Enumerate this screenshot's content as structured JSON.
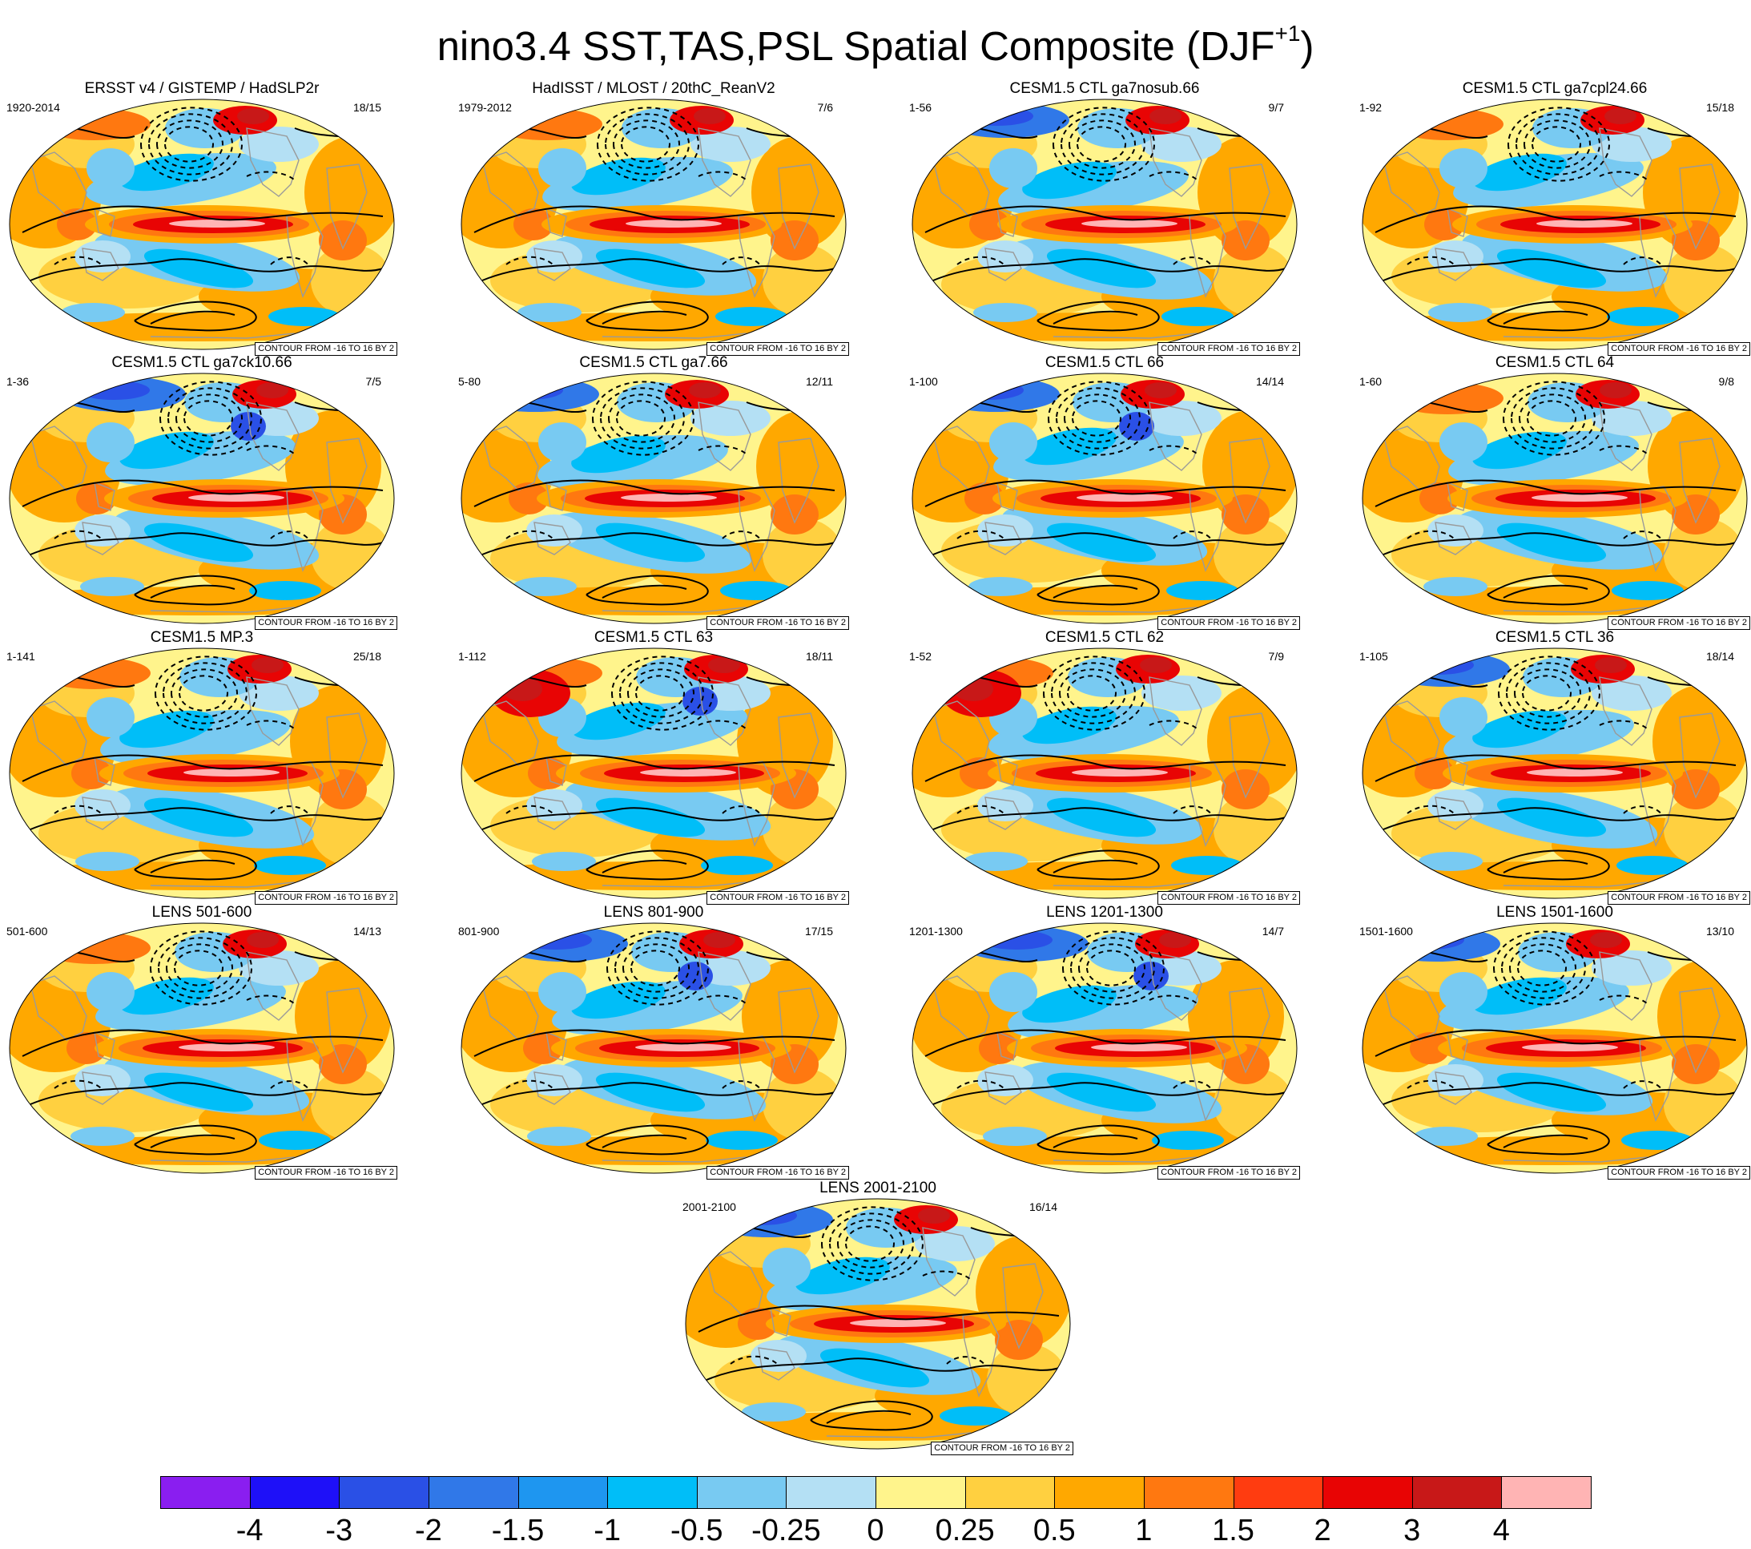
{
  "title": {
    "main": "nino3.4 SST,TAS,PSL Spatial Composite (DJF",
    "superscript": "+1",
    "close": ")"
  },
  "contour_note": "CONTOUR FROM -16 TO 16 BY 2",
  "panels": [
    {
      "title": "ERSST v4 / GISTEMP / HadSLP2r",
      "left": "1920-2014",
      "right": "18/15",
      "variant": 0
    },
    {
      "title": "HadISST / MLOST / 20thC_ReanV2",
      "left": "1979-2012",
      "right": "7/6",
      "variant": 1
    },
    {
      "title": "CESM1.5 CTL ga7nosub.66",
      "left": "1-56",
      "right": "9/7",
      "variant": 2
    },
    {
      "title": "CESM1.5 CTL ga7cpl24.66",
      "left": "1-92",
      "right": "15/18",
      "variant": 3
    },
    {
      "title": "CESM1.5 CTL ga7ck10.66",
      "left": "1-36",
      "right": "7/5",
      "variant": 4
    },
    {
      "title": "CESM1.5 CTL ga7.66",
      "left": "5-80",
      "right": "12/11",
      "variant": 5
    },
    {
      "title": "CESM1.5 CTL 66",
      "left": "1-100",
      "right": "14/14",
      "variant": 6
    },
    {
      "title": "CESM1.5 CTL 64",
      "left": "1-60",
      "right": "9/8",
      "variant": 7
    },
    {
      "title": "CESM1.5 MP.3",
      "left": "1-141",
      "right": "25/18",
      "variant": 8
    },
    {
      "title": "CESM1.5 CTL 63",
      "left": "1-112",
      "right": "18/11",
      "variant": 9
    },
    {
      "title": "CESM1.5 CTL 62",
      "left": "1-52",
      "right": "7/9",
      "variant": 10
    },
    {
      "title": "CESM1.5 CTL 36",
      "left": "1-105",
      "right": "18/14",
      "variant": 11
    },
    {
      "title": "LENS 501-600",
      "left": "501-600",
      "right": "14/13",
      "variant": 12
    },
    {
      "title": "LENS 801-900",
      "left": "801-900",
      "right": "17/15",
      "variant": 13
    },
    {
      "title": "LENS 1201-1300",
      "left": "1201-1300",
      "right": "14/7",
      "variant": 14
    },
    {
      "title": "LENS 1501-1600",
      "left": "1501-1600",
      "right": "13/10",
      "variant": 15
    },
    {
      "title": "LENS 2001-2100",
      "left": "2001-2100",
      "right": "16/14",
      "variant": 16
    }
  ],
  "colorbar": {
    "colors": [
      "#8a1ef0",
      "#1e10f8",
      "#2a50e6",
      "#3078e8",
      "#1e96f0",
      "#00bef8",
      "#78caf2",
      "#b4e0f4",
      "#fff48c",
      "#ffd040",
      "#ffa800",
      "#ff7810",
      "#ff3c10",
      "#e80404",
      "#c81818",
      "#ffb4b4"
    ],
    "labels": [
      "-4",
      "-3",
      "-2",
      "-1.5",
      "-1",
      "-0.5",
      "-0.25",
      "0",
      "0.25",
      "0.5",
      "1",
      "1.5",
      "2",
      "3",
      "4"
    ]
  }
}
